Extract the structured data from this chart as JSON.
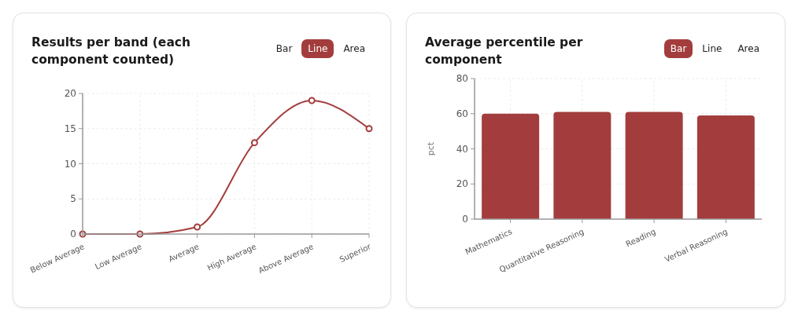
{
  "chart_data": [
    {
      "type": "line",
      "title": "Results per band (each component counted)",
      "categories": [
        "Below Average",
        "Low Average",
        "Average",
        "High Average",
        "Above Average",
        "Superior"
      ],
      "series": [
        {
          "color": "#a33d3d",
          "values": [
            0,
            0,
            1,
            13,
            19,
            15
          ]
        }
      ],
      "ylim": [
        0,
        20
      ],
      "yticks": [
        0,
        5,
        10,
        15,
        20
      ],
      "grid": true,
      "marker": "circle",
      "annotations": [
        "Bar",
        "Line",
        "Area"
      ]
    },
    {
      "type": "bar",
      "title": "Average percentile per component",
      "ylabel": "pct",
      "categories": [
        "Mathematics",
        "Quantitative Reasoning",
        "Reading",
        "Verbal Reasoning"
      ],
      "series": [
        {
          "color": "#a33d3d",
          "values": [
            60,
            61,
            61,
            59
          ]
        }
      ],
      "ylim": [
        0,
        80
      ],
      "yticks": [
        0,
        20,
        40,
        60,
        80
      ],
      "grid": true,
      "annotations": [
        "Bar",
        "Line",
        "Area"
      ]
    }
  ]
}
